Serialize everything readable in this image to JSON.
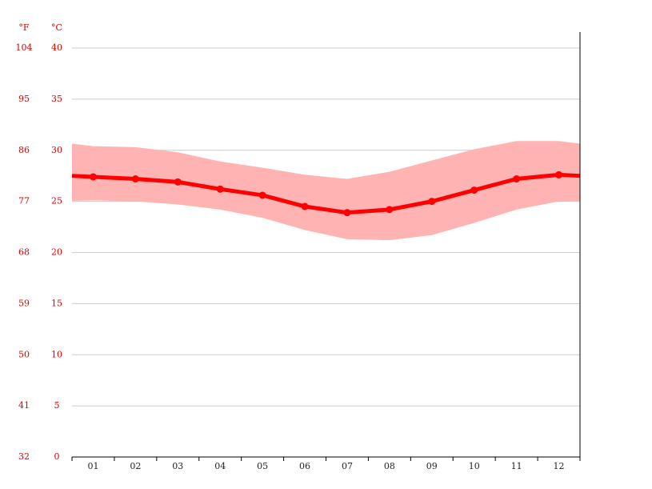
{
  "chart_data": {
    "type": "line",
    "y_label": "°C",
    "y2_label": "°F",
    "categories": [
      "01",
      "02",
      "03",
      "04",
      "05",
      "06",
      "07",
      "08",
      "09",
      "10",
      "11",
      "12"
    ],
    "series": [
      {
        "color": "#ff0000",
        "values": [
          27.4,
          27.2,
          26.9,
          26.2,
          25.6,
          24.5,
          23.9,
          24.2,
          25.0,
          26.1,
          27.2,
          27.6
        ]
      }
    ],
    "range": {
      "color": "#ffb3b3",
      "high": [
        30.4,
        30.3,
        29.8,
        28.9,
        28.3,
        27.6,
        27.2,
        27.9,
        29.0,
        30.1,
        30.9,
        30.9
      ],
      "low": [
        25.1,
        25.0,
        24.7,
        24.2,
        23.4,
        22.2,
        21.3,
        21.2,
        21.7,
        22.9,
        24.2,
        25.0
      ]
    },
    "ylim": [
      0,
      40
    ],
    "yticks": [
      0,
      5,
      10,
      15,
      20,
      25,
      30,
      35,
      40
    ],
    "y2lim": [
      32,
      104
    ],
    "y2ticks": [
      32,
      41,
      50,
      59,
      68,
      77,
      86,
      95,
      104
    ],
    "grid": true
  }
}
